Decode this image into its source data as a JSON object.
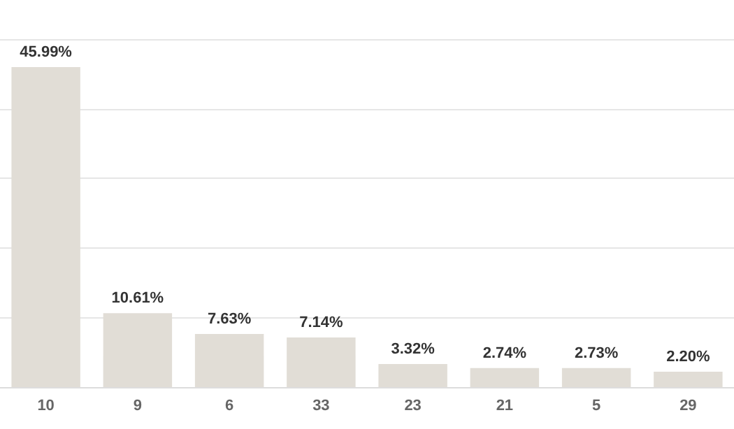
{
  "chart_data": {
    "type": "bar",
    "categories": [
      "10",
      "9",
      "6",
      "33",
      "23",
      "21",
      "5",
      "29"
    ],
    "values": [
      45.99,
      10.61,
      7.63,
      7.14,
      3.32,
      2.74,
      2.73,
      2.2
    ],
    "value_labels": [
      "45.99%",
      "10.61%",
      "7.63%",
      "7.14%",
      "3.32%",
      "2.74%",
      "2.73%",
      "2.20%"
    ],
    "color": "#e1ddd6",
    "ylim": [
      0,
      50
    ],
    "grid": "y",
    "tick_labels": "x"
  }
}
